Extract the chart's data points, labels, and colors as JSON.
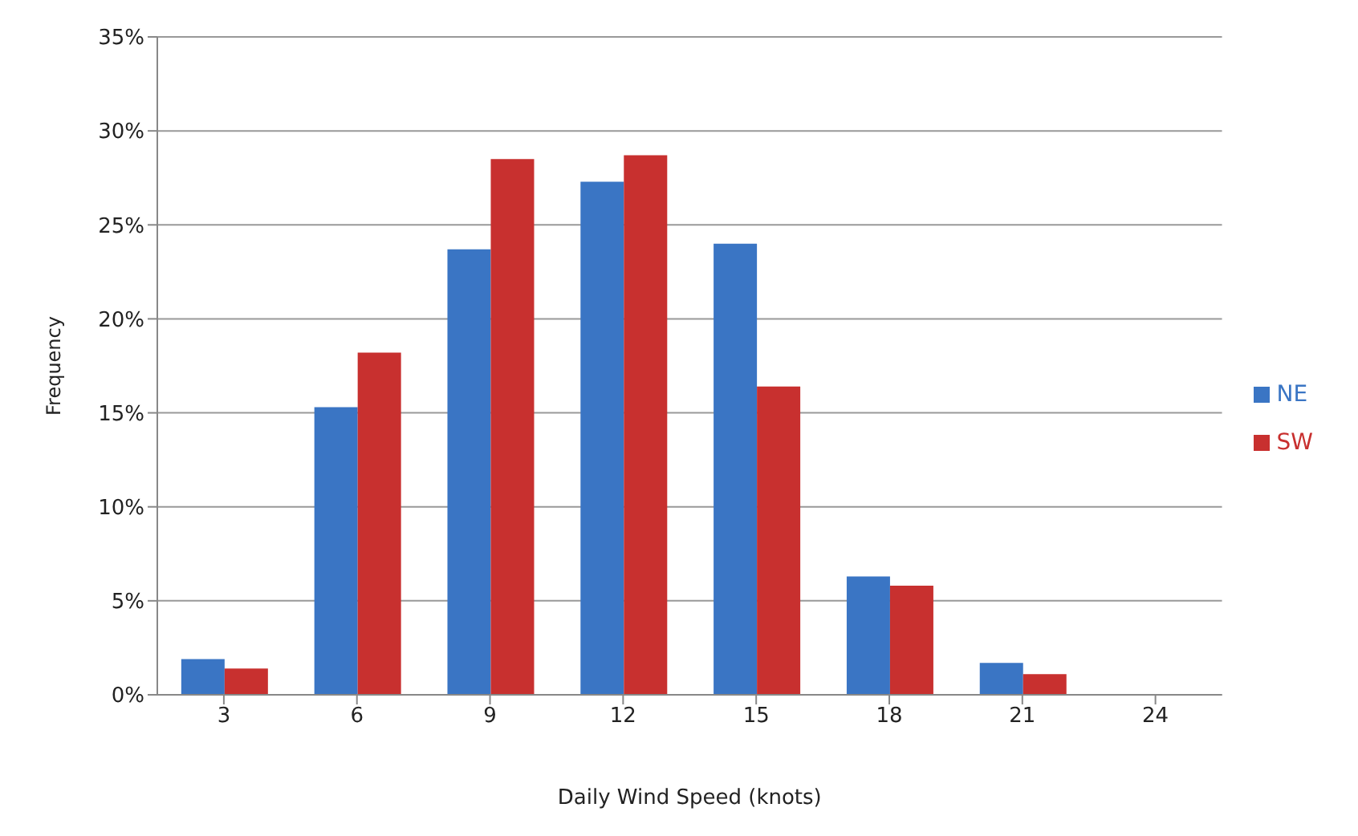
{
  "chart_data": {
    "type": "bar",
    "xlabel": "Daily Wind Speed (knots)",
    "ylabel": "Frequency",
    "categories": [
      "3",
      "6",
      "9",
      "12",
      "15",
      "18",
      "21",
      "24"
    ],
    "series": [
      {
        "name": "NE",
        "color": "#3a75c4",
        "values": [
          1.9,
          15.3,
          23.7,
          27.3,
          24.0,
          6.3,
          1.7,
          0
        ]
      },
      {
        "name": "SW",
        "color": "#c8302f",
        "values": [
          1.4,
          18.2,
          28.5,
          28.7,
          16.4,
          5.8,
          1.1,
          0
        ]
      }
    ],
    "ylim": [
      0,
      35
    ],
    "yticks": [
      {
        "value": 0,
        "label": "0%"
      },
      {
        "value": 5,
        "label": "5%"
      },
      {
        "value": 10,
        "label": "10%"
      },
      {
        "value": 15,
        "label": "15%"
      },
      {
        "value": 20,
        "label": "20%"
      },
      {
        "value": 25,
        "label": "25%"
      },
      {
        "value": 30,
        "label": "30%"
      },
      {
        "value": 35,
        "label": "35%"
      }
    ],
    "grid": "y",
    "legend": "right"
  }
}
